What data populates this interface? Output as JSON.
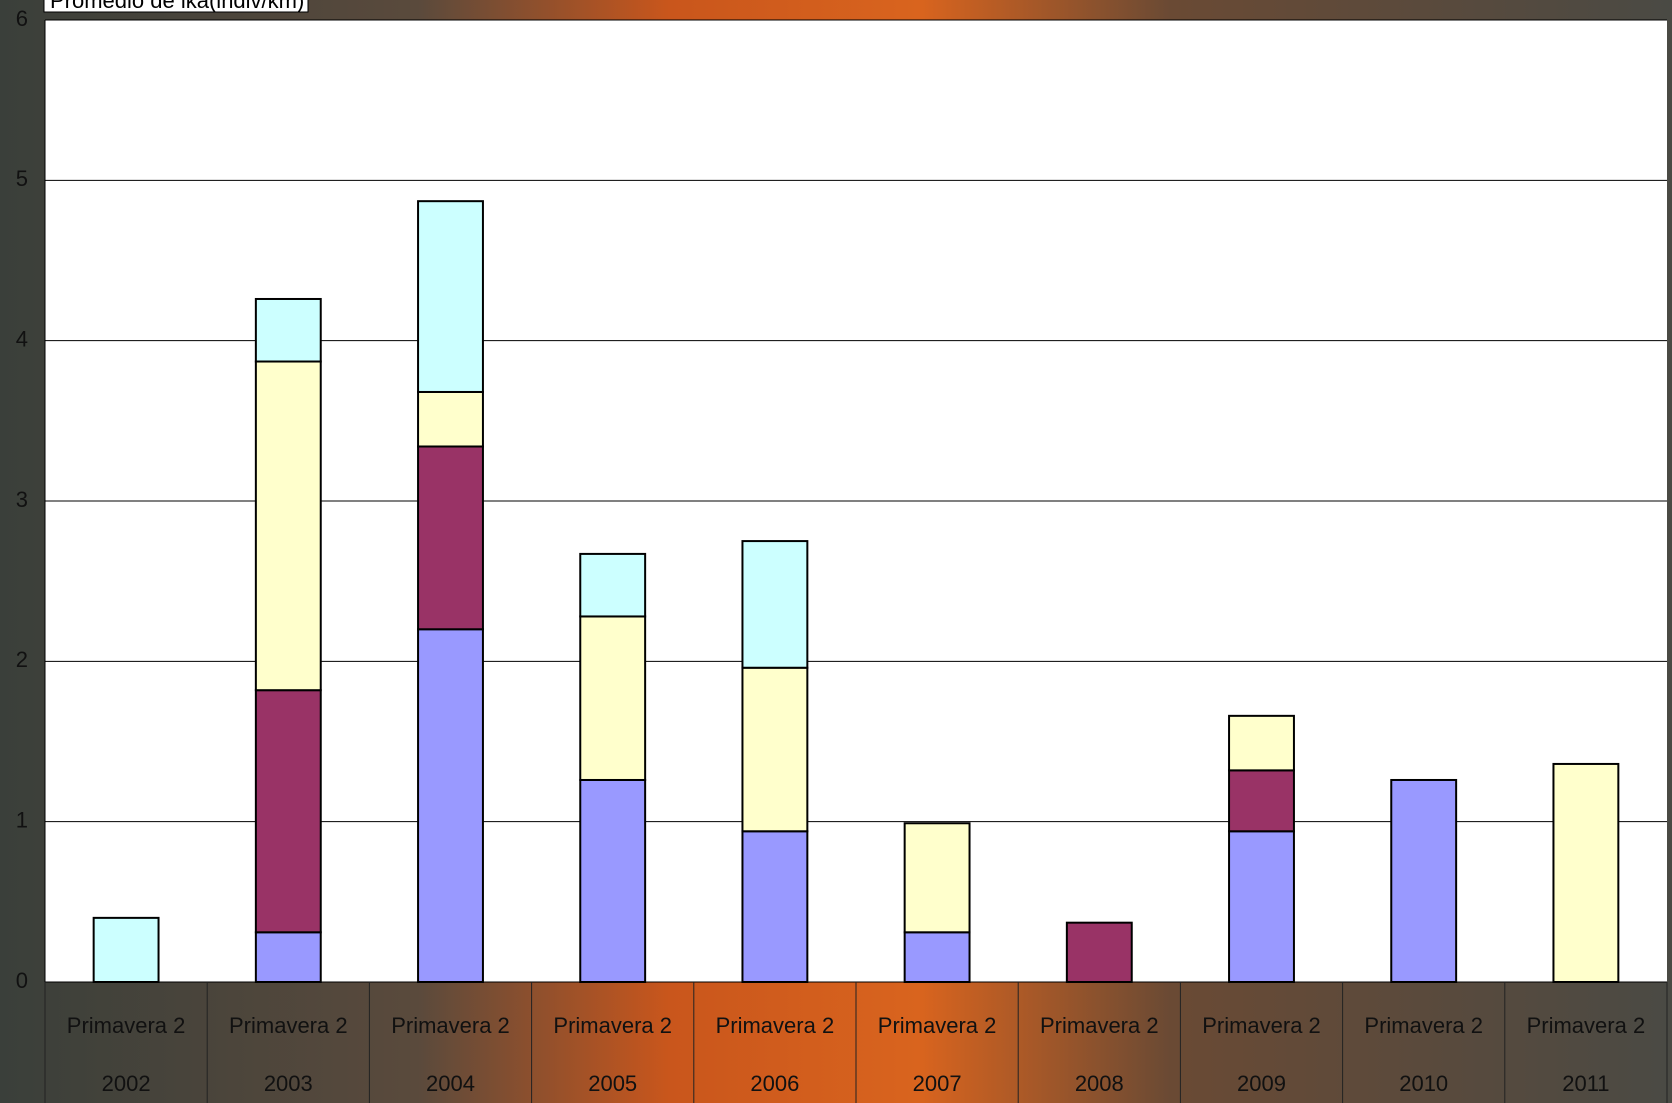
{
  "chart_data": {
    "type": "stacked_bar",
    "title": "Promedio de ika(indiv/km)",
    "category_labels_top": [
      "Primavera 2",
      "Primavera 2",
      "Primavera 2",
      "Primavera 2",
      "Primavera 2",
      "Primavera 2",
      "Primavera 2",
      "Primavera 2",
      "Primavera 2",
      "Primavera 2"
    ],
    "categories": [
      "2002",
      "2003",
      "2004",
      "2005",
      "2006",
      "2007",
      "2008",
      "2009",
      "2010",
      "2011"
    ],
    "series": [
      {
        "color": "#9999ff",
        "values": [
          0,
          0.31,
          2.2,
          1.26,
          0.94,
          0.31,
          0,
          0.94,
          1.26,
          0
        ]
      },
      {
        "color": "#993366",
        "values": [
          0,
          1.51,
          1.14,
          0,
          0,
          0,
          0.37,
          0.38,
          0,
          0
        ]
      },
      {
        "color": "#ffffcc",
        "values": [
          0,
          2.05,
          0.34,
          1.02,
          1.02,
          0.68,
          0,
          0.34,
          0,
          1.36
        ]
      },
      {
        "color": "#ccffff",
        "values": [
          0.4,
          0.39,
          1.19,
          0.39,
          0.79,
          0,
          0,
          0,
          0,
          0
        ]
      }
    ],
    "ylim": [
      0,
      6
    ],
    "yticks": [
      0,
      1,
      2,
      3,
      4,
      5,
      6
    ],
    "grid": true
  }
}
